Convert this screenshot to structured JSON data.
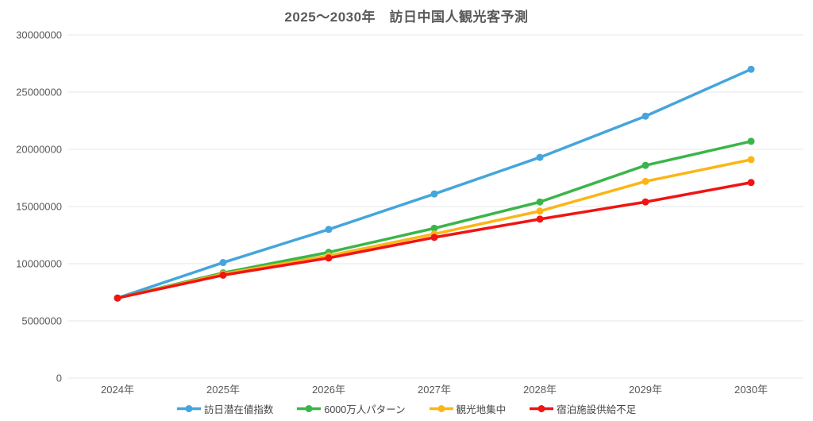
{
  "chart_data": {
    "type": "line",
    "title": "2025〜2030年　訪日中国人観光客予測",
    "x": [
      "2024年",
      "2025年",
      "2026年",
      "2027年",
      "2028年",
      "2029年",
      "2030年"
    ],
    "series": [
      {
        "name": "訪日潜在値指数",
        "color": "#45A5DC",
        "values": [
          7000000,
          10100000,
          13000000,
          16100000,
          19300000,
          22900000,
          27000000
        ]
      },
      {
        "name": "6000万人パターン",
        "color": "#3BB54A",
        "values": [
          7000000,
          9200000,
          11000000,
          13100000,
          15400000,
          18600000,
          20700000
        ]
      },
      {
        "name": "観光地集中",
        "color": "#FBB515",
        "values": [
          7000000,
          9100000,
          10700000,
          12600000,
          14600000,
          17200000,
          19100000
        ]
      },
      {
        "name": "宿泊施設供給不足",
        "color": "#F01412",
        "values": [
          7000000,
          9000000,
          10500000,
          12300000,
          13900000,
          15400000,
          17100000
        ]
      }
    ],
    "yticks": [
      0,
      5000000,
      10000000,
      15000000,
      20000000,
      25000000,
      30000000
    ],
    "ylim": [
      0,
      30000000
    ],
    "grid": true,
    "grid_color": "#e7e7e7",
    "text_color": "#595959",
    "legend_position": "bottom"
  }
}
